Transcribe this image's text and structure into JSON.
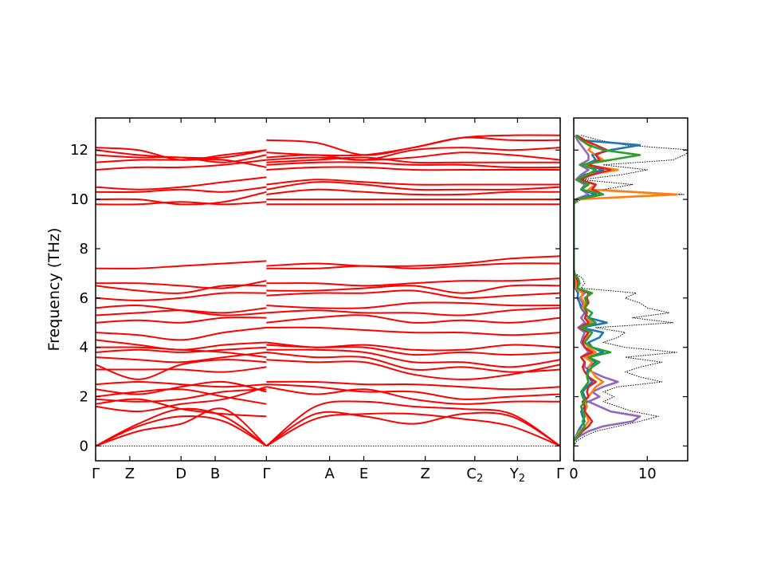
{
  "chart_data": [
    {
      "type": "line",
      "title": "",
      "ylabel": "Frequency (THz)",
      "xlabel": "",
      "ylim": [
        -0.6,
        13.3
      ],
      "y_ticks": [
        0,
        2,
        4,
        6,
        8,
        10,
        12
      ],
      "q_points": [
        {
          "label": "Γ",
          "sub": "",
          "x": 0
        },
        {
          "label": "Z",
          "sub": "",
          "x": 0.2
        },
        {
          "label": "D",
          "sub": "",
          "x": 0.5
        },
        {
          "label": "B",
          "sub": "",
          "x": 0.7
        },
        {
          "label": "Γ",
          "sub": "",
          "x": 1.0
        },
        {
          "label": "A",
          "sub": "",
          "x": 1.37
        },
        {
          "label": "E",
          "sub": "",
          "x": 1.57
        },
        {
          "label": "Z",
          "sub": "",
          "x": 1.93
        },
        {
          "label": "C",
          "sub": "2",
          "x": 2.22
        },
        {
          "label": "Y",
          "sub": "2",
          "x": 2.47
        },
        {
          "label": "Γ",
          "sub": "",
          "x": 2.72
        }
      ],
      "line_color": "#ff0000",
      "zero_line_color": "#0000ff",
      "segments": [
        {
          "x0": 0,
          "x1": 1.0,
          "bands": [
            [
              0,
              0.9,
              1.5,
              1.2,
              0
            ],
            [
              0,
              0.8,
              1.2,
              1.0,
              0
            ],
            [
              0,
              0.6,
              0.9,
              1.5,
              0
            ],
            [
              1.6,
              1.4,
              1.7,
              1.9,
              2.4
            ],
            [
              1.7,
              1.9,
              1.5,
              1.3,
              1.2
            ],
            [
              1.9,
              1.8,
              1.9,
              2.2,
              2.3
            ],
            [
              2.0,
              2.2,
              2.3,
              2.0,
              1.7
            ],
            [
              2.3,
              2.1,
              2.4,
              2.6,
              2.2
            ],
            [
              2.5,
              2.6,
              2.5,
              2.4,
              2.5
            ],
            [
              3.1,
              3.1,
              3.1,
              3.0,
              3.2
            ],
            [
              3.3,
              2.7,
              3.3,
              3.5,
              3.4
            ],
            [
              3.6,
              3.5,
              3.4,
              3.6,
              3.8
            ],
            [
              3.8,
              3.9,
              3.8,
              3.9,
              4.0
            ],
            [
              4.0,
              4.0,
              3.9,
              3.8,
              3.6
            ],
            [
              4.3,
              4.1,
              3.9,
              4.1,
              4.2
            ],
            [
              4.6,
              4.5,
              4.3,
              4.6,
              4.8
            ],
            [
              5.0,
              5.1,
              5.0,
              5.2,
              5.2
            ],
            [
              5.3,
              5.4,
              5.5,
              5.4,
              5.6
            ],
            [
              5.6,
              5.7,
              5.5,
              5.3,
              5.4
            ],
            [
              6.0,
              5.9,
              6.0,
              6.2,
              6.2
            ],
            [
              6.5,
              6.3,
              6.2,
              6.5,
              6.5
            ],
            [
              6.6,
              6.6,
              6.5,
              6.4,
              6.7
            ],
            [
              7.2,
              7.2,
              7.3,
              7.4,
              7.5
            ],
            [
              9.8,
              9.8,
              9.9,
              9.8,
              9.9
            ],
            [
              10.0,
              10.0,
              9.8,
              9.9,
              10.3
            ],
            [
              10.3,
              10.3,
              10.4,
              10.3,
              10.5
            ],
            [
              10.5,
              10.4,
              10.5,
              10.7,
              10.9
            ],
            [
              11.2,
              11.3,
              11.3,
              11.4,
              11.6
            ],
            [
              11.5,
              11.6,
              11.6,
              11.6,
              11.3
            ],
            [
              11.8,
              11.7,
              11.7,
              11.5,
              11.8
            ],
            [
              12.0,
              11.8,
              11.7,
              11.7,
              12.0
            ],
            [
              12.1,
              12.0,
              11.6,
              11.8,
              12.0
            ]
          ]
        },
        {
          "x0": 1.0,
          "x1": 2.72,
          "bands": [
            [
              0,
              1.3,
              1.2,
              0.9,
              1.3,
              1.2,
              0
            ],
            [
              0,
              1.1,
              1.3,
              1.3,
              1.1,
              0.8,
              0
            ],
            [
              0,
              1.6,
              1.8,
              1.6,
              1.5,
              1.3,
              0
            ],
            [
              2.4,
              2.1,
              2.3,
              1.9,
              1.7,
              1.8,
              1.8
            ],
            [
              2.5,
              2.4,
              2.2,
              2.2,
              1.9,
              2.0,
              2.1
            ],
            [
              2.6,
              2.6,
              2.5,
              2.5,
              2.4,
              2.3,
              2.4
            ],
            [
              3.5,
              3.4,
              3.4,
              2.9,
              2.7,
              2.9,
              3.3
            ],
            [
              3.8,
              3.6,
              3.6,
              3.1,
              3.2,
              3.0,
              3.1
            ],
            [
              3.9,
              3.9,
              3.8,
              3.4,
              3.4,
              3.2,
              3.5
            ],
            [
              4.1,
              4.0,
              4.0,
              3.7,
              3.8,
              3.7,
              3.8
            ],
            [
              4.2,
              4.0,
              4.1,
              3.9,
              3.9,
              4.1,
              4.0
            ],
            [
              4.8,
              4.8,
              4.7,
              4.6,
              4.6,
              4.5,
              4.6
            ],
            [
              5.0,
              5.2,
              5.3,
              5.0,
              5.1,
              5.0,
              5.2
            ],
            [
              5.4,
              5.5,
              5.4,
              5.4,
              5.3,
              5.5,
              5.6
            ],
            [
              5.7,
              5.6,
              5.6,
              5.8,
              5.8,
              5.7,
              5.7
            ],
            [
              6.1,
              6.2,
              6.2,
              6.3,
              6.0,
              6.1,
              6.2
            ],
            [
              6.3,
              6.3,
              6.4,
              6.5,
              6.2,
              6.5,
              6.5
            ],
            [
              6.6,
              6.6,
              6.5,
              6.6,
              6.7,
              6.7,
              6.8
            ],
            [
              7.2,
              7.2,
              7.3,
              7.2,
              7.3,
              7.4,
              7.4
            ],
            [
              7.3,
              7.4,
              7.3,
              7.3,
              7.4,
              7.6,
              7.7
            ],
            [
              9.8,
              9.8,
              9.8,
              9.8,
              9.8,
              9.8,
              9.8
            ],
            [
              10.0,
              10.0,
              10.0,
              10.0,
              10.0,
              10.0,
              10.0
            ],
            [
              10.2,
              10.4,
              10.3,
              10.2,
              10.2,
              10.3,
              10.3
            ],
            [
              10.4,
              10.7,
              10.6,
              10.4,
              10.4,
              10.4,
              10.5
            ],
            [
              10.6,
              10.8,
              10.7,
              10.6,
              10.6,
              10.6,
              10.6
            ],
            [
              11.2,
              11.3,
              11.3,
              11.2,
              11.2,
              11.2,
              11.2
            ],
            [
              11.4,
              11.5,
              11.5,
              11.4,
              11.4,
              11.3,
              11.3
            ],
            [
              11.5,
              11.6,
              11.7,
              11.5,
              11.5,
              11.5,
              11.5
            ],
            [
              11.6,
              11.7,
              11.6,
              11.7,
              11.9,
              11.8,
              11.6
            ],
            [
              11.7,
              11.8,
              11.6,
              12.0,
              12.1,
              12.0,
              12.1
            ],
            [
              11.9,
              11.8,
              11.8,
              12.1,
              12.5,
              12.4,
              12.4
            ],
            [
              12.4,
              12.3,
              11.8,
              12.1,
              12.5,
              12.6,
              12.6
            ]
          ]
        }
      ]
    },
    {
      "type": "line",
      "title": "",
      "xlabel": "",
      "xlim": [
        0,
        15.5
      ],
      "x_ticks": [
        0,
        10
      ],
      "ylim": [
        -0.6,
        13.3
      ],
      "y_step": 0.2,
      "y_start": 0,
      "series": [
        {
          "color": "#000000",
          "style": "dotted",
          "values": [
            0,
            0.4,
            1.5,
            3.0,
            6.0,
            9.0,
            11.5,
            8.0,
            6.0,
            4.0,
            5.5,
            4.0,
            6.0,
            12.0,
            9.0,
            7.0,
            9.0,
            12.0,
            7.0,
            14.0,
            7.0,
            4.0,
            6.0,
            7.0,
            3.0,
            13.5,
            8.0,
            13.0,
            10.0,
            9.0,
            7.0,
            8.5,
            1.0,
            1.5,
            1.2,
            0.2,
            0,
            0,
            0,
            0,
            0,
            0,
            0,
            0,
            0,
            0,
            0,
            0,
            0,
            0,
            1.0,
            15.0,
            4.0,
            8.0,
            1.0,
            6.5,
            10.0,
            4.0,
            13.5,
            15.0,
            16.0,
            7.0,
            3.5,
            1.0
          ]
        },
        {
          "color": "#1f77b4",
          "style": "solid",
          "values": [
            0,
            0,
            0.3,
            0.6,
            1.0,
            1.5,
            1.2,
            1.0,
            1.5,
            1.8,
            1.5,
            1.2,
            1.8,
            2.5,
            2.0,
            1.8,
            2.0,
            3.0,
            2.0,
            4.0,
            2.5,
            2.0,
            3.5,
            4.0,
            1.0,
            4.5,
            2.0,
            1.5,
            1.0,
            0.8,
            0.5,
            0.6,
            0.2,
            0.2,
            0.2,
            0,
            0,
            0,
            0,
            0,
            0,
            0,
            0,
            0,
            0,
            0,
            0,
            0,
            0,
            0,
            0.3,
            3.0,
            1.0,
            2.0,
            0.5,
            1.5,
            4.0,
            1.5,
            3.0,
            2.5,
            5.0,
            9.0,
            1.0,
            0.3
          ]
        },
        {
          "color": "#ff7f0e",
          "style": "solid",
          "values": [
            0,
            0,
            0.4,
            0.8,
            1.5,
            2.0,
            1.8,
            1.5,
            1.8,
            1.5,
            2.0,
            2.5,
            3.0,
            4.0,
            3.0,
            2.5,
            2.0,
            2.5,
            1.5,
            3.0,
            2.0,
            1.5,
            1.8,
            2.0,
            1.0,
            2.5,
            1.5,
            1.8,
            1.2,
            1.5,
            1.0,
            1.2,
            0.3,
            0.4,
            0.3,
            0,
            0,
            0,
            0,
            0,
            0,
            0,
            0,
            0,
            0,
            0,
            0,
            0,
            0,
            0,
            0.3,
            14.0,
            2.0,
            3.0,
            0.5,
            2.0,
            6.0,
            1.5,
            4.0,
            3.0,
            2.0,
            2.5,
            1.0,
            0.3
          ]
        },
        {
          "color": "#2ca02c",
          "style": "solid",
          "values": [
            0,
            0,
            0.5,
            1.0,
            1.5,
            1.2,
            1.5,
            1.2,
            1.0,
            1.5,
            1.2,
            1.0,
            1.5,
            2.0,
            1.8,
            2.0,
            2.5,
            3.5,
            2.0,
            5.0,
            2.5,
            1.5,
            2.0,
            2.5,
            1.0,
            3.0,
            2.0,
            2.5,
            1.5,
            1.8,
            1.5,
            2.5,
            0.5,
            0.8,
            0.6,
            0.1,
            0,
            0,
            0,
            0,
            0,
            0,
            0,
            0,
            0,
            0,
            0,
            0,
            0,
            0,
            0.4,
            4.0,
            1.0,
            2.0,
            0.4,
            1.8,
            3.0,
            1.0,
            5.0,
            9.0,
            4.0,
            2.0,
            1.0,
            0.3
          ]
        },
        {
          "color": "#d62728",
          "style": "solid",
          "values": [
            0,
            0,
            0.6,
            1.2,
            2.0,
            2.5,
            2.0,
            1.5,
            1.5,
            1.2,
            2.0,
            1.8,
            2.0,
            3.0,
            2.0,
            1.5,
            1.2,
            1.5,
            1.0,
            2.5,
            1.5,
            1.2,
            1.5,
            2.0,
            0.8,
            2.0,
            1.5,
            1.8,
            1.5,
            2.0,
            1.8,
            2.0,
            0.5,
            0.6,
            0.4,
            0.1,
            0,
            0,
            0,
            0,
            0,
            0,
            0,
            0,
            0,
            0,
            0,
            0,
            0,
            0,
            0.5,
            4.0,
            2.5,
            3.0,
            0.8,
            2.5,
            5.0,
            2.0,
            3.5,
            3.0,
            4.5,
            3.0,
            1.5,
            0.4
          ]
        },
        {
          "color": "#9467bd",
          "style": "solid",
          "values": [
            0,
            0,
            0.8,
            2.0,
            4.0,
            8.0,
            9.0,
            5.0,
            3.5,
            2.0,
            3.5,
            2.5,
            4.0,
            6.0,
            4.0,
            2.5,
            1.5,
            1.5,
            1.0,
            2.0,
            1.5,
            1.0,
            1.2,
            1.5,
            0.6,
            1.5,
            1.0,
            1.5,
            1.0,
            1.2,
            0.8,
            1.5,
            0.3,
            0.3,
            0.2,
            0,
            0,
            0,
            0,
            0,
            0,
            0,
            0,
            0,
            0,
            0,
            0,
            0,
            0,
            0,
            0.2,
            2.0,
            1.0,
            1.5,
            0.3,
            1.0,
            2.0,
            0.8,
            2.0,
            2.0,
            1.5,
            1.0,
            0.5,
            0.2
          ]
        }
      ]
    }
  ]
}
